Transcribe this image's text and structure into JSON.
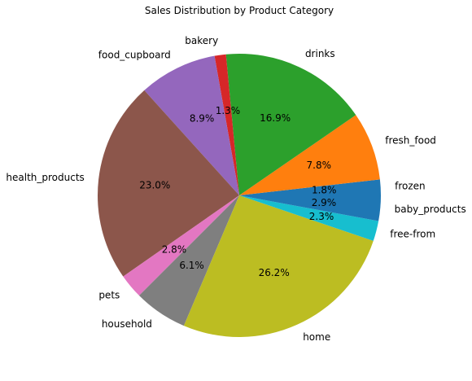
{
  "chart_data": {
    "type": "pie",
    "title": "Sales Distribution by Product Category",
    "start_angle_deg": 0,
    "direction": "counterclockwise",
    "slices": [
      {
        "label": "frozen",
        "value": 1.8,
        "pct_label": "1.8%",
        "color": "#1f77b4"
      },
      {
        "label": "fresh_food",
        "value": 7.8,
        "pct_label": "7.8%",
        "color": "#ff7f0e"
      },
      {
        "label": "drinks",
        "value": 16.9,
        "pct_label": "16.9%",
        "color": "#2ca02c"
      },
      {
        "label": "bakery",
        "value": 1.3,
        "pct_label": "1.3%",
        "color": "#d62728"
      },
      {
        "label": "food_cupboard",
        "value": 8.9,
        "pct_label": "8.9%",
        "color": "#9467bd"
      },
      {
        "label": "health_products",
        "value": 23.0,
        "pct_label": "23.0%",
        "color": "#8c564b"
      },
      {
        "label": "pets",
        "value": 2.8,
        "pct_label": "2.8%",
        "color": "#e377c2"
      },
      {
        "label": "household",
        "value": 6.1,
        "pct_label": "6.1%",
        "color": "#7f7f7f"
      },
      {
        "label": "home",
        "value": 26.2,
        "pct_label": "26.2%",
        "color": "#bcbd22"
      },
      {
        "label": "free-from",
        "value": 2.3,
        "pct_label": "2.3%",
        "color": "#17becf"
      },
      {
        "label": "baby_products",
        "value": 2.9,
        "pct_label": "2.9%",
        "color": "#1f77b4"
      }
    ]
  }
}
